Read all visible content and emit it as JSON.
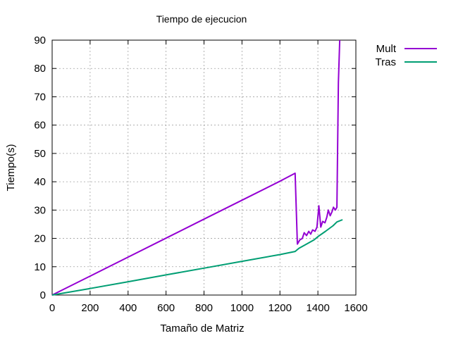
{
  "chart_data": {
    "type": "line",
    "title": "Tiempo de ejecucion",
    "xlabel": "Tamaño de Matriz",
    "ylabel": "Tiempo(s)",
    "xlim": [
      0,
      1600
    ],
    "ylim": [
      0,
      90
    ],
    "xticks": [
      0,
      200,
      400,
      600,
      800,
      1000,
      1200,
      1400,
      1600
    ],
    "yticks": [
      0,
      10,
      20,
      30,
      40,
      50,
      60,
      70,
      80,
      90
    ],
    "grid": true,
    "legend_position": "outside-top-right",
    "series": [
      {
        "name": "Mult",
        "color": "#9400d3",
        "points": [
          [
            0,
            0
          ],
          [
            200,
            6.7
          ],
          [
            400,
            13.4
          ],
          [
            600,
            20.1
          ],
          [
            800,
            26.8
          ],
          [
            1000,
            33.5
          ],
          [
            1200,
            40.2
          ],
          [
            1280,
            43
          ],
          [
            1292,
            18
          ],
          [
            1305,
            19.5
          ],
          [
            1318,
            20
          ],
          [
            1328,
            22
          ],
          [
            1340,
            21
          ],
          [
            1352,
            22.5
          ],
          [
            1362,
            21.5
          ],
          [
            1372,
            23
          ],
          [
            1385,
            22.5
          ],
          [
            1395,
            24
          ],
          [
            1405,
            31.5
          ],
          [
            1415,
            24
          ],
          [
            1425,
            26
          ],
          [
            1437,
            25.5
          ],
          [
            1447,
            27.5
          ],
          [
            1455,
            30
          ],
          [
            1465,
            28
          ],
          [
            1475,
            29.5
          ],
          [
            1482,
            31
          ],
          [
            1492,
            30
          ],
          [
            1500,
            31
          ],
          [
            1508,
            75
          ],
          [
            1515,
            90
          ]
        ]
      },
      {
        "name": "Tras",
        "color": "#009e73",
        "points": [
          [
            0,
            0
          ],
          [
            200,
            2.3
          ],
          [
            400,
            4.7
          ],
          [
            600,
            7.1
          ],
          [
            800,
            9.5
          ],
          [
            1000,
            11.9
          ],
          [
            1200,
            14.3
          ],
          [
            1280,
            15.4
          ],
          [
            1300,
            16.5
          ],
          [
            1340,
            18
          ],
          [
            1380,
            19.5
          ],
          [
            1400,
            20.6
          ],
          [
            1440,
            22.5
          ],
          [
            1480,
            24.5
          ],
          [
            1500,
            25.8
          ],
          [
            1530,
            26.6
          ]
        ]
      }
    ]
  }
}
